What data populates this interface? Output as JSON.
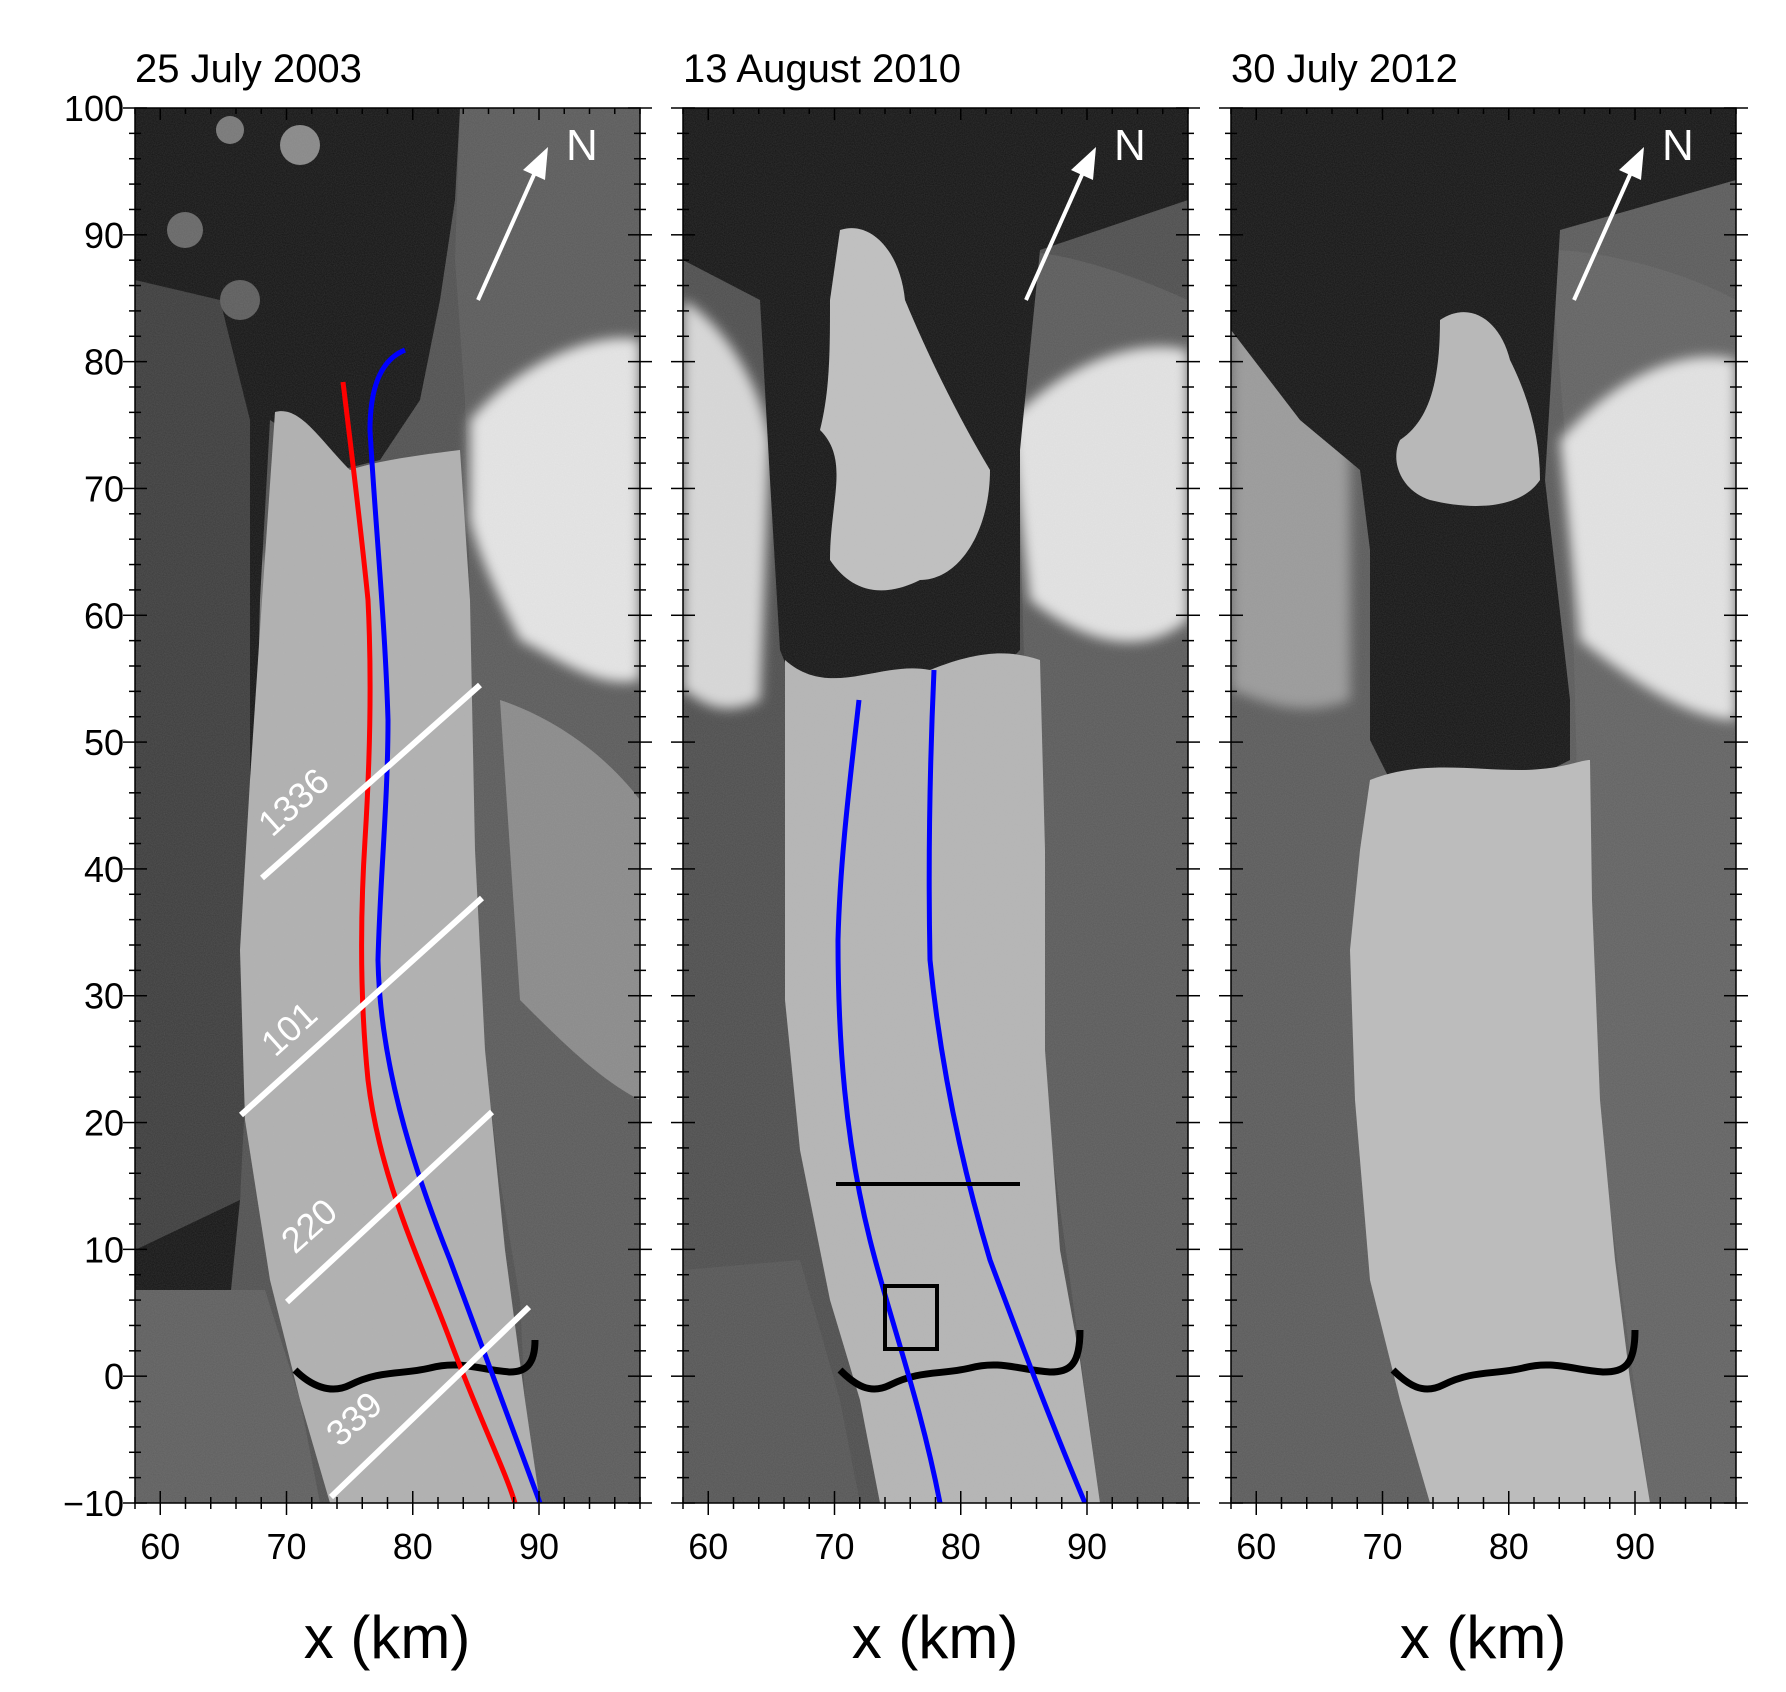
{
  "figure": {
    "panels": [
      {
        "title": "25 July 2003",
        "xlabel": "x (km)"
      },
      {
        "title": "13 August 2010",
        "xlabel": "x (km)"
      },
      {
        "title": "30 July 2012",
        "xlabel": "x (km)"
      }
    ],
    "ylabel": "",
    "x_ticks": [
      60,
      70,
      80,
      90
    ],
    "y_ticks": [
      100,
      90,
      80,
      70,
      60,
      50,
      40,
      30,
      20,
      10,
      0,
      -10
    ],
    "y_tick_labels": [
      "100",
      "90",
      "80",
      "70",
      "60",
      "50",
      "40",
      "30",
      "20",
      "10",
      "0",
      "−10"
    ],
    "xlim": [
      58,
      98
    ],
    "ylim": [
      -10,
      100
    ],
    "north_label": "N",
    "transect_labels": [
      "1336",
      "101",
      "220",
      "339"
    ],
    "colors": {
      "ice": "#b3b3b3",
      "ocean": "#0e0e0e",
      "rock": "#4a4a4a",
      "snow": "#e8e8e8",
      "red_line": "#ff0000",
      "blue_line": "#0000ff",
      "black_line": "#000000",
      "white_line": "#ffffff"
    }
  }
}
